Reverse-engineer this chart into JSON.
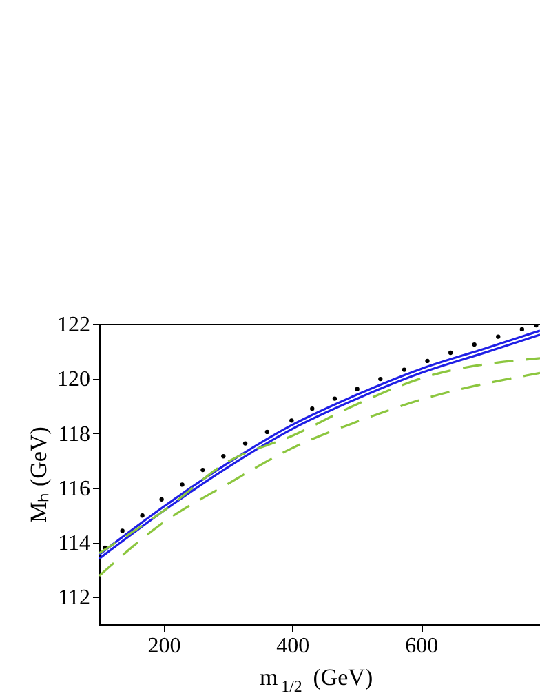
{
  "chart_data": {
    "type": "line",
    "xlabel": "m$_{1/2}$ (GeV)",
    "ylabel": "Mₕ (GeV)",
    "xlim": [
      100,
      785
    ],
    "xticks": [
      200,
      400,
      600
    ],
    "ylim": [
      111,
      122
    ],
    "yticks": [
      112,
      114,
      116,
      118,
      120,
      122
    ],
    "grid": false,
    "legend": false,
    "series": [
      {
        "color": "#1f1fe6",
        "line_style": "solid",
        "marker": "none",
        "x": [
          100,
          200,
          300,
          400,
          500,
          600,
          700,
          785
        ],
        "values": [
          113.55,
          115.3,
          116.9,
          118.3,
          119.4,
          120.35,
          121.1,
          121.75
        ]
      },
      {
        "color": "#1f1fe6",
        "line_style": "solid",
        "marker": "none",
        "x": [
          100,
          200,
          300,
          400,
          500,
          600,
          700,
          785
        ],
        "values": [
          113.4,
          115.15,
          116.75,
          118.15,
          119.25,
          120.2,
          120.95,
          121.6
        ]
      },
      {
        "type": "scatter",
        "color": "#000000",
        "marker": "circle",
        "x": [
          109,
          136,
          167,
          197,
          229,
          261,
          293,
          327,
          361,
          399,
          431,
          466,
          501,
          537,
          574,
          610,
          646,
          683,
          720,
          757,
          779
        ],
        "values": [
          113.8,
          114.42,
          114.98,
          115.57,
          116.11,
          116.65,
          117.15,
          117.62,
          118.04,
          118.46,
          118.89,
          119.26,
          119.61,
          119.98,
          120.32,
          120.64,
          120.94,
          121.24,
          121.53,
          121.8,
          121.95
        ]
      },
      {
        "color": "#8cc63f",
        "line_style": "dashed",
        "marker": "none",
        "x": [
          100,
          200,
          300,
          400,
          500,
          600,
          785
        ],
        "values": [
          113.6,
          115.15,
          116.95,
          117.9,
          119.05,
          120.0,
          120.74
        ]
      },
      {
        "color": "#8cc63f",
        "line_style": "dashed",
        "marker": "none",
        "x": [
          100,
          200,
          300,
          400,
          500,
          600,
          785
        ],
        "values": [
          112.77,
          114.73,
          116.14,
          117.45,
          118.41,
          119.22,
          120.2
        ]
      }
    ]
  }
}
